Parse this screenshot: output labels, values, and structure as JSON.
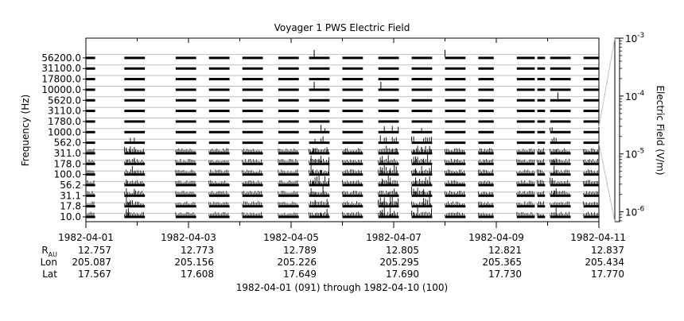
{
  "chart_data": {
    "type": "heatmap",
    "title": "Voyager 1 PWS Electric Field",
    "ylabel": "Frequency (Hz)",
    "colorbar_label": "Electric Field (V/m)",
    "colorbar_ticks": [
      {
        "exp": -3,
        "label_base": "10",
        "label_exp": "-3"
      },
      {
        "exp": -4,
        "label_base": "10",
        "label_exp": "-4"
      },
      {
        "exp": -5,
        "label_base": "10",
        "label_exp": "-5"
      },
      {
        "exp": -6,
        "label_base": "10",
        "label_exp": "-6"
      }
    ],
    "colorbar_range": [
      -6.17,
      -3
    ],
    "frequency_channels": [
      "10.0",
      "17.8",
      "31.1",
      "56.2",
      "100.0",
      "178.0",
      "311.0",
      "562.0",
      "1000.0",
      "1780.0",
      "3110.0",
      "5620.0",
      "10000.0",
      "17800.0",
      "31100.0",
      "56200.0"
    ],
    "x_ticks": [
      "1982-04-01",
      "1982-04-03",
      "1982-04-05",
      "1982-04-07",
      "1982-04-09",
      "1982-04-11"
    ],
    "x_range_days": [
      0,
      10
    ],
    "ephemeris": {
      "row_labels": [
        {
          "key": "rau",
          "main": "R",
          "sub": "AU"
        },
        {
          "key": "lon",
          "main": "Lon",
          "sub": ""
        },
        {
          "key": "lat",
          "main": "Lat",
          "sub": ""
        }
      ],
      "rau": [
        "12.757",
        "12.773",
        "12.789",
        "12.805",
        "12.821",
        "12.837"
      ],
      "lon": [
        "205.087",
        "205.156",
        "205.226",
        "205.295",
        "205.365",
        "205.434"
      ],
      "lat": [
        "17.567",
        "17.608",
        "17.649",
        "17.690",
        "17.730",
        "17.770"
      ]
    },
    "xlabel": "1982-04-01 (091) through 1982-04-10 (100)",
    "data_segments": [
      [
        0.0,
        0.18
      ],
      [
        0.75,
        1.15
      ],
      [
        1.75,
        2.15
      ],
      [
        2.4,
        2.8
      ],
      [
        3.05,
        3.45
      ],
      [
        3.75,
        4.15
      ],
      [
        4.35,
        4.75
      ],
      [
        5.0,
        5.4
      ],
      [
        5.7,
        6.1
      ],
      [
        6.35,
        6.75
      ],
      [
        7.0,
        7.4
      ],
      [
        7.65,
        7.95
      ],
      [
        8.4,
        8.75
      ],
      [
        8.8,
        8.95
      ],
      [
        9.05,
        9.45
      ],
      [
        9.7,
        10.0
      ]
    ],
    "burst_segments": [
      [
        4.35,
        4.75
      ],
      [
        5.7,
        6.1
      ],
      [
        6.35,
        6.75
      ],
      [
        9.05,
        9.2
      ],
      [
        0.75,
        0.95
      ]
    ]
  }
}
